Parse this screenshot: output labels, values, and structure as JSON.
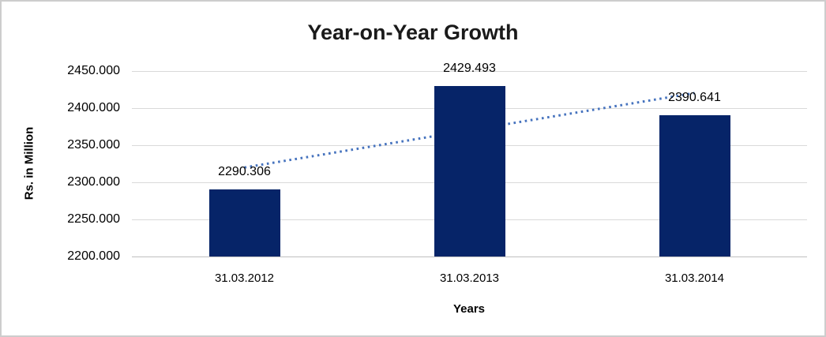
{
  "chart_data": {
    "type": "bar",
    "title": "Year-on-Year Growth",
    "xlabel": "Years",
    "ylabel": "Rs. in Million",
    "categories": [
      "31.03.2012",
      "31.03.2013",
      "31.03.2014"
    ],
    "values": [
      2290.306,
      2429.493,
      2390.641
    ],
    "data_labels": [
      "2290.306",
      "2429.493",
      "2390.641"
    ],
    "y_ticks": [
      {
        "value": 2450,
        "label": "2450.000"
      },
      {
        "value": 2400,
        "label": "2400.000"
      },
      {
        "value": 2350,
        "label": "2350.000"
      },
      {
        "value": 2300,
        "label": "2300.000"
      },
      {
        "value": 2250,
        "label": "2250.000"
      },
      {
        "value": 2200,
        "label": "2200.000"
      }
    ],
    "ylim": [
      2200,
      2450
    ],
    "grid": true,
    "legend": "none",
    "trendline": {
      "type": "linear",
      "style": "dotted"
    },
    "colors": {
      "bar": "#062468",
      "trendline": "#4673be",
      "gridline": "#d9d9d9",
      "axis_line": "#bfbfbf",
      "text": "#000000",
      "border": "#cdcdcd"
    }
  }
}
